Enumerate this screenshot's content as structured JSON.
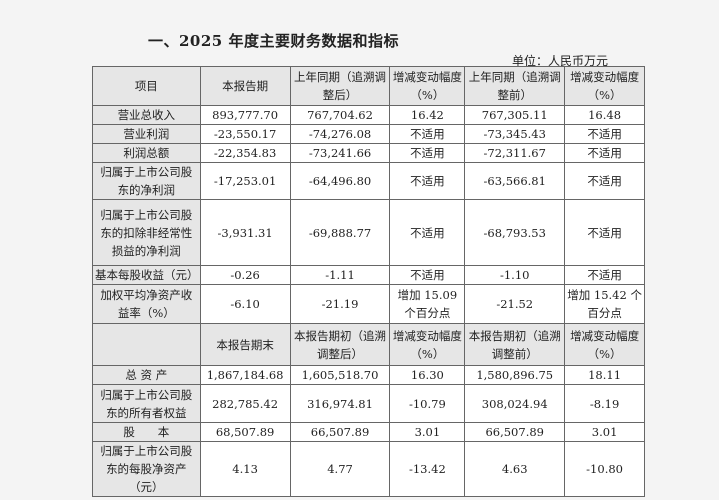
{
  "title": "一、2025 年度主要财务数据和指标",
  "unit": "单位：人民币万元",
  "header1": [
    "项目",
    "本报告期",
    "上年同期（追溯调整后）",
    "增减变动幅度（%）",
    "上年同期（追溯调整前）",
    "增减变动幅度（%）"
  ],
  "rows1": [
    [
      "营业总收入",
      "893,777.70",
      "767,704.62",
      "16.42",
      "767,305.11",
      "16.48"
    ],
    [
      "营业利润",
      "-23,550.17",
      "-74,276.08",
      "不适用",
      "-73,345.43",
      "不适用"
    ],
    [
      "利润总额",
      "-22,354.83",
      "-73,241.66",
      "不适用",
      "-72,311.67",
      "不适用"
    ],
    [
      "归属于上市公司股东的净利润",
      "-17,253.01",
      "-64,496.80",
      "不适用",
      "-63,566.81",
      "不适用"
    ],
    [
      "归属于上市公司股东的扣除非经常性损益的净利润",
      "-3,931.31",
      "-69,888.77",
      "不适用",
      "-68,793.53",
      "不适用"
    ],
    [
      "基本每股收益（元）",
      "-0.26",
      "-1.11",
      "不适用",
      "-1.10",
      "不适用"
    ],
    [
      "加权平均净资产收益率（%）",
      "-6.10",
      "-21.19",
      "增加 15.09 个百分点",
      "-21.52",
      "增加 15.42 个百分点"
    ]
  ],
  "header2": [
    "",
    "本报告期末",
    "本报告期初（追溯调整后）",
    "增减变动幅度（%）",
    "本报告期初（追溯调整前）",
    "增减变动幅度（%）"
  ],
  "rows2": [
    [
      "总 资 产",
      "1,867,184.68",
      "1,605,518.70",
      "16.30",
      "1,580,896.75",
      "18.11"
    ],
    [
      "归属于上市公司股东的所有者权益",
      "282,785.42",
      "316,974.81",
      "-10.79",
      "308,024.94",
      "-8.19"
    ],
    [
      "股　　本",
      "68,507.89",
      "66,507.89",
      "3.01",
      "66,507.89",
      "3.01"
    ],
    [
      "归属于上市公司股东的每股净资产（元）",
      "4.13",
      "4.77",
      "-13.42",
      "4.63",
      "-10.80"
    ]
  ]
}
